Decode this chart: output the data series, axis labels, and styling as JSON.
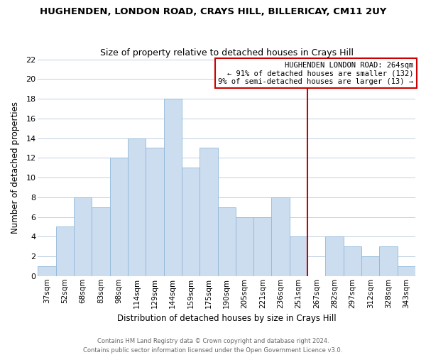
{
  "title": "HUGHENDEN, LONDON ROAD, CRAYS HILL, BILLERICAY, CM11 2UY",
  "subtitle": "Size of property relative to detached houses in Crays Hill",
  "xlabel": "Distribution of detached houses by size in Crays Hill",
  "ylabel": "Number of detached properties",
  "bar_color": "#ccddf0",
  "bar_edge_color": "#90b8d8",
  "categories": [
    "37sqm",
    "52sqm",
    "68sqm",
    "83sqm",
    "98sqm",
    "114sqm",
    "129sqm",
    "144sqm",
    "159sqm",
    "175sqm",
    "190sqm",
    "205sqm",
    "221sqm",
    "236sqm",
    "251sqm",
    "267sqm",
    "282sqm",
    "297sqm",
    "312sqm",
    "328sqm",
    "343sqm"
  ],
  "values": [
    1,
    5,
    8,
    7,
    12,
    14,
    13,
    18,
    11,
    13,
    7,
    6,
    6,
    8,
    4,
    0,
    4,
    3,
    2,
    3,
    1
  ],
  "ylim": [
    0,
    22
  ],
  "yticks": [
    0,
    2,
    4,
    6,
    8,
    10,
    12,
    14,
    16,
    18,
    20,
    22
  ],
  "vline_index": 15,
  "vline_color": "#cc0000",
  "annotation_title": "HUGHENDEN LONDON ROAD: 264sqm",
  "annotation_line1": "← 91% of detached houses are smaller (132)",
  "annotation_line2": "9% of semi-detached houses are larger (13) →",
  "annotation_box_color": "#ffffff",
  "annotation_box_edge": "#cc0000",
  "footer_line1": "Contains HM Land Registry data © Crown copyright and database right 2024.",
  "footer_line2": "Contains public sector information licensed under the Open Government Licence v3.0.",
  "bg_color": "#ffffff",
  "grid_color": "#c0d0e0"
}
